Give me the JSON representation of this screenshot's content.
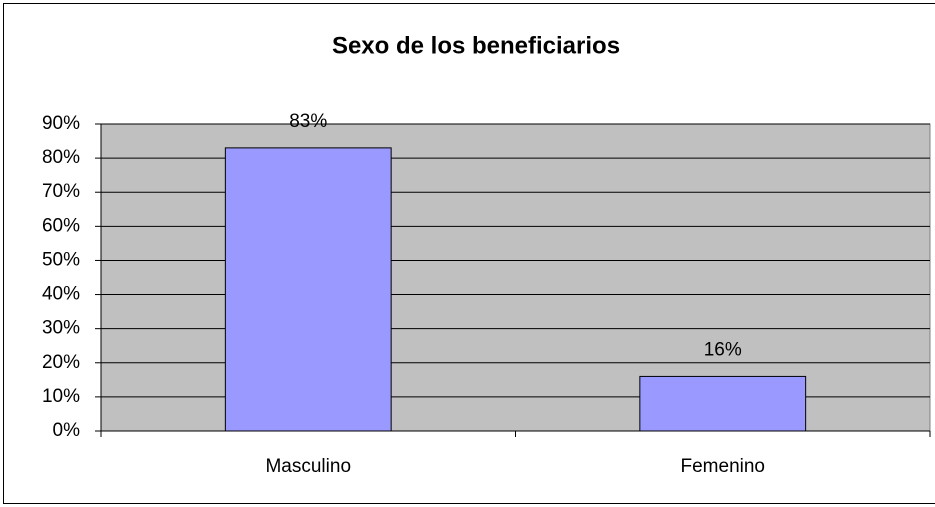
{
  "chart_data": {
    "type": "bar",
    "title": "Sexo de los beneficiarios",
    "categories": [
      "Masculino",
      "Femenino"
    ],
    "values": [
      83,
      16
    ],
    "value_labels": [
      "83%",
      "16%"
    ],
    "color": "#9999ff",
    "ylim": [
      0,
      90
    ],
    "yticks": [
      {
        "value": 0,
        "label": "0%"
      },
      {
        "value": 10,
        "label": "10%"
      },
      {
        "value": 20,
        "label": "20%"
      },
      {
        "value": 30,
        "label": "30%"
      },
      {
        "value": 40,
        "label": "40%"
      },
      {
        "value": 50,
        "label": "50%"
      },
      {
        "value": 60,
        "label": "60%"
      },
      {
        "value": 70,
        "label": "70%"
      },
      {
        "value": 80,
        "label": "80%"
      },
      {
        "value": 90,
        "label": "90%"
      }
    ],
    "grid": true
  }
}
